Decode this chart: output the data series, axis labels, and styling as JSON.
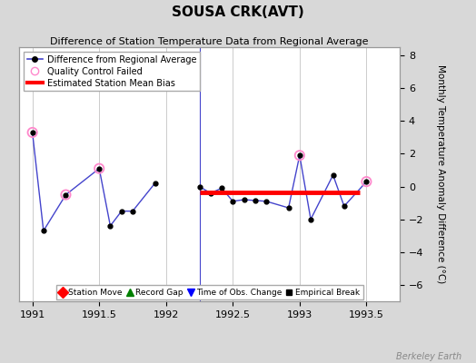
{
  "title": "SOUSA CRK(AVT)",
  "subtitle": "Difference of Station Temperature Data from Regional Average",
  "ylabel_right": "Monthly Temperature Anomaly Difference (°C)",
  "background_color": "#d8d8d8",
  "plot_bg_color": "#ffffff",
  "xlim": [
    1990.9,
    1993.75
  ],
  "ylim": [
    -7.0,
    8.5
  ],
  "yticks": [
    -6,
    -4,
    -2,
    0,
    2,
    4,
    6,
    8
  ],
  "xticks": [
    1991,
    1991.5,
    1992,
    1992.5,
    1993,
    1993.5
  ],
  "xticklabels": [
    "1991",
    "1991.5",
    "1992",
    "1992.5",
    "1993",
    "1993.5"
  ],
  "seg1_x": [
    1991.0,
    1991.083,
    1991.25,
    1991.5,
    1991.583,
    1991.667,
    1991.75,
    1991.917
  ],
  "seg1_y": [
    3.3,
    -2.7,
    -0.5,
    1.1,
    -2.4,
    -1.5,
    -1.5,
    0.2
  ],
  "seg2_x": [
    1992.25,
    1992.333,
    1992.417,
    1992.5,
    1992.583,
    1992.667,
    1992.75,
    1992.917,
    1993.0,
    1993.083,
    1993.25,
    1993.333,
    1993.5
  ],
  "seg2_y": [
    0.0,
    -0.4,
    -0.1,
    -0.9,
    -0.8,
    -0.85,
    -0.9,
    -1.3,
    1.9,
    -2.0,
    0.7,
    -1.2,
    0.3
  ],
  "qc_x": [
    1991.0,
    1991.25,
    1991.5,
    1993.0,
    1993.5
  ],
  "qc_y": [
    3.3,
    -0.5,
    1.1,
    1.9,
    0.3
  ],
  "bias_x_start": 1992.25,
  "bias_x_end": 1993.45,
  "bias_y": -0.35,
  "vline_x": 1992.25,
  "line_color": "#4444cc",
  "marker_color": "#000000",
  "qc_color": "#ff88cc",
  "bias_color": "#ff0000",
  "grid_color": "#cccccc",
  "watermark": "Berkeley Earth",
  "title_fontsize": 11,
  "subtitle_fontsize": 8,
  "tick_fontsize": 8,
  "label_fontsize": 7.5
}
